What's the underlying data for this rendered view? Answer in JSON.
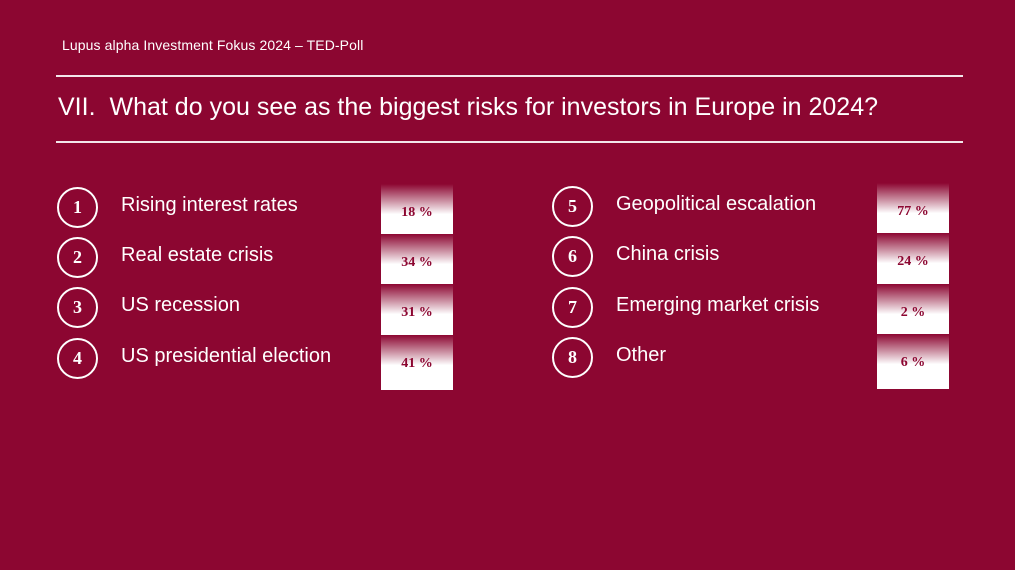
{
  "header": {
    "subtitle": "Lupus alpha Investment Fokus 2024 – TED-Poll"
  },
  "question": {
    "number": "VII.",
    "text": "What do you see as the biggest risks for investors in Europe in 2024?"
  },
  "colors": {
    "background": "#8c0631",
    "accent_text": "#8c0631",
    "foreground": "#ffffff"
  },
  "items": [
    {
      "number": "1",
      "label": "Rising interest rates",
      "value": "18 %"
    },
    {
      "number": "2",
      "label": "Real estate crisis",
      "value": "34 %"
    },
    {
      "number": "3",
      "label": "US recession",
      "value": "31 %"
    },
    {
      "number": "4",
      "label": "US presidential election",
      "value": "41 %"
    },
    {
      "number": "5",
      "label": "Geopolitical escalation",
      "value": "77 %"
    },
    {
      "number": "6",
      "label": "China crisis",
      "value": "24 %"
    },
    {
      "number": "7",
      "label": "Emerging market crisis",
      "value": "2 %"
    },
    {
      "number": "8",
      "label": "Other",
      "value": "6 %"
    }
  ]
}
